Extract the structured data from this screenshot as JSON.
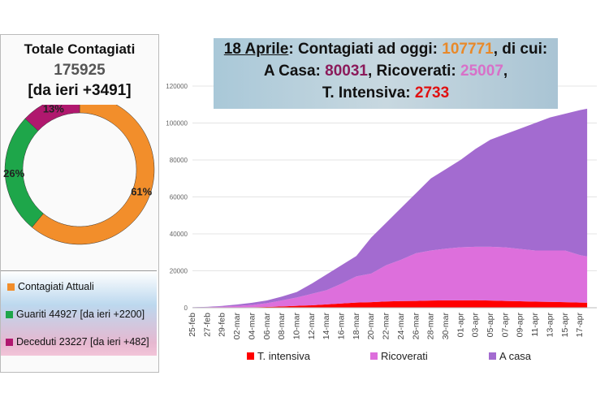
{
  "left": {
    "title": "Totale Contagiati",
    "total": "175925",
    "delta": "[da ieri +3491]",
    "donut": [
      {
        "label": "61%",
        "value": 61,
        "color": "#f28e2b"
      },
      {
        "label": "26%",
        "value": 26,
        "color": "#1ea64a"
      },
      {
        "label": "13%",
        "value": 13,
        "color": "#b0186e"
      }
    ],
    "legend": [
      {
        "label": "Contagiati Attuali",
        "color": "#f28e2b"
      },
      {
        "label": "Guariti 44927 [da ieri +2200]",
        "color": "#1ea64a"
      },
      {
        "label": "Deceduti 23227 [da ieri +482]",
        "color": "#b0186e"
      }
    ]
  },
  "header": {
    "date": "18 Aprile",
    "t1": ": Contagiati ad oggi: ",
    "total": "107771",
    "t2": ", di cui:",
    "casa_label": "A Casa: ",
    "casa": "80031",
    "sep": ", Ricoverati: ",
    "ric": "25007",
    "comma": ",",
    "ti_label": "T. Intensiva: ",
    "ti": "2733",
    "colors": {
      "total": "#e8892a",
      "casa": "#8b1a5a",
      "ric": "#d870c8",
      "ti": "#e01010"
    }
  },
  "chart_data": {
    "type": "area",
    "stacked": true,
    "ylim": [
      0,
      120000
    ],
    "yticks": [
      0,
      20000,
      40000,
      60000,
      80000,
      100000,
      120000
    ],
    "x": [
      "25-feb",
      "27-feb",
      "29-feb",
      "02-mar",
      "04-mar",
      "06-mar",
      "08-mar",
      "10-mar",
      "12-mar",
      "14-mar",
      "16-mar",
      "18-mar",
      "20-mar",
      "22-mar",
      "24-mar",
      "26-mar",
      "28-mar",
      "30-mar",
      "01-apr",
      "03-apr",
      "05-apr",
      "07-apr",
      "09-apr",
      "11-apr",
      "13-apr",
      "15-apr",
      "17-apr",
      "18-apr"
    ],
    "xticks": [
      "25-feb",
      "27-feb",
      "29-feb",
      "02-mar",
      "04-mar",
      "06-mar",
      "08-mar",
      "10-mar",
      "12-mar",
      "14-mar",
      "16-mar",
      "18-mar",
      "20-mar",
      "22-mar",
      "24-mar",
      "26-mar",
      "28-mar",
      "30-mar",
      "01-apr",
      "03-apr",
      "05-apr",
      "07-apr",
      "09-apr",
      "11-apr",
      "13-apr",
      "15-apr",
      "17-apr"
    ],
    "series": [
      {
        "name": "T. intensiva",
        "color": "#ff0000",
        "values": [
          30,
          60,
          100,
          170,
          300,
          460,
          730,
          1030,
          1330,
          1800,
          2300,
          2800,
          3000,
          3400,
          3600,
          3700,
          3900,
          4000,
          4030,
          4050,
          3900,
          3700,
          3500,
          3300,
          3200,
          3000,
          2800,
          2733
        ]
      },
      {
        "name": "Ricoverati",
        "color": "#dd6fdc",
        "values": [
          120,
          250,
          500,
          800,
          1200,
          2000,
          3200,
          4500,
          6200,
          7700,
          10700,
          14200,
          15500,
          19600,
          22400,
          25800,
          27100,
          28000,
          28700,
          28950,
          29100,
          29000,
          28300,
          27700,
          27800,
          28000,
          25700,
          25007
        ]
      },
      {
        "name": "A casa",
        "color": "#a36bd0",
        "values": [
          150,
          200,
          400,
          800,
          1200,
          1500,
          2100,
          3000,
          5500,
          8500,
          10000,
          11000,
          19500,
          23000,
          28000,
          32500,
          39000,
          43000,
          47300,
          53000,
          58000,
          61300,
          65200,
          69000,
          72000,
          74000,
          78500,
          80031
        ]
      }
    ],
    "legend_position": "bottom"
  }
}
